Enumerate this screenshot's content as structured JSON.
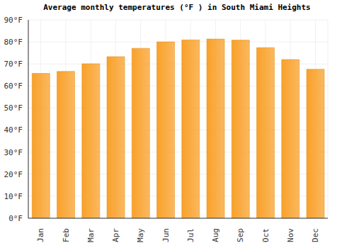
{
  "chart_data": {
    "type": "bar",
    "title": "Average monthly temperatures (°F ) in South Miami Heights",
    "categories": [
      "Jan",
      "Feb",
      "Mar",
      "Apr",
      "May",
      "Jun",
      "Jul",
      "Aug",
      "Sep",
      "Oct",
      "Nov",
      "Dec"
    ],
    "values": [
      65.7,
      66.6,
      70.1,
      73.3,
      77.1,
      80.0,
      80.9,
      81.3,
      80.8,
      77.4,
      72.0,
      67.6
    ],
    "color": "#f9a12a",
    "ylim": [
      0,
      90
    ],
    "yticks": [
      {
        "value": 0,
        "label": "0°F"
      },
      {
        "value": 10,
        "label": "10°F"
      },
      {
        "value": 20,
        "label": "20°F"
      },
      {
        "value": 30,
        "label": "30°F"
      },
      {
        "value": 40,
        "label": "40°F"
      },
      {
        "value": 50,
        "label": "50°F"
      },
      {
        "value": 60,
        "label": "60°F"
      },
      {
        "value": 70,
        "label": "70°F"
      },
      {
        "value": 80,
        "label": "80°F"
      },
      {
        "value": 90,
        "label": "90°F"
      }
    ],
    "grid": true
  }
}
